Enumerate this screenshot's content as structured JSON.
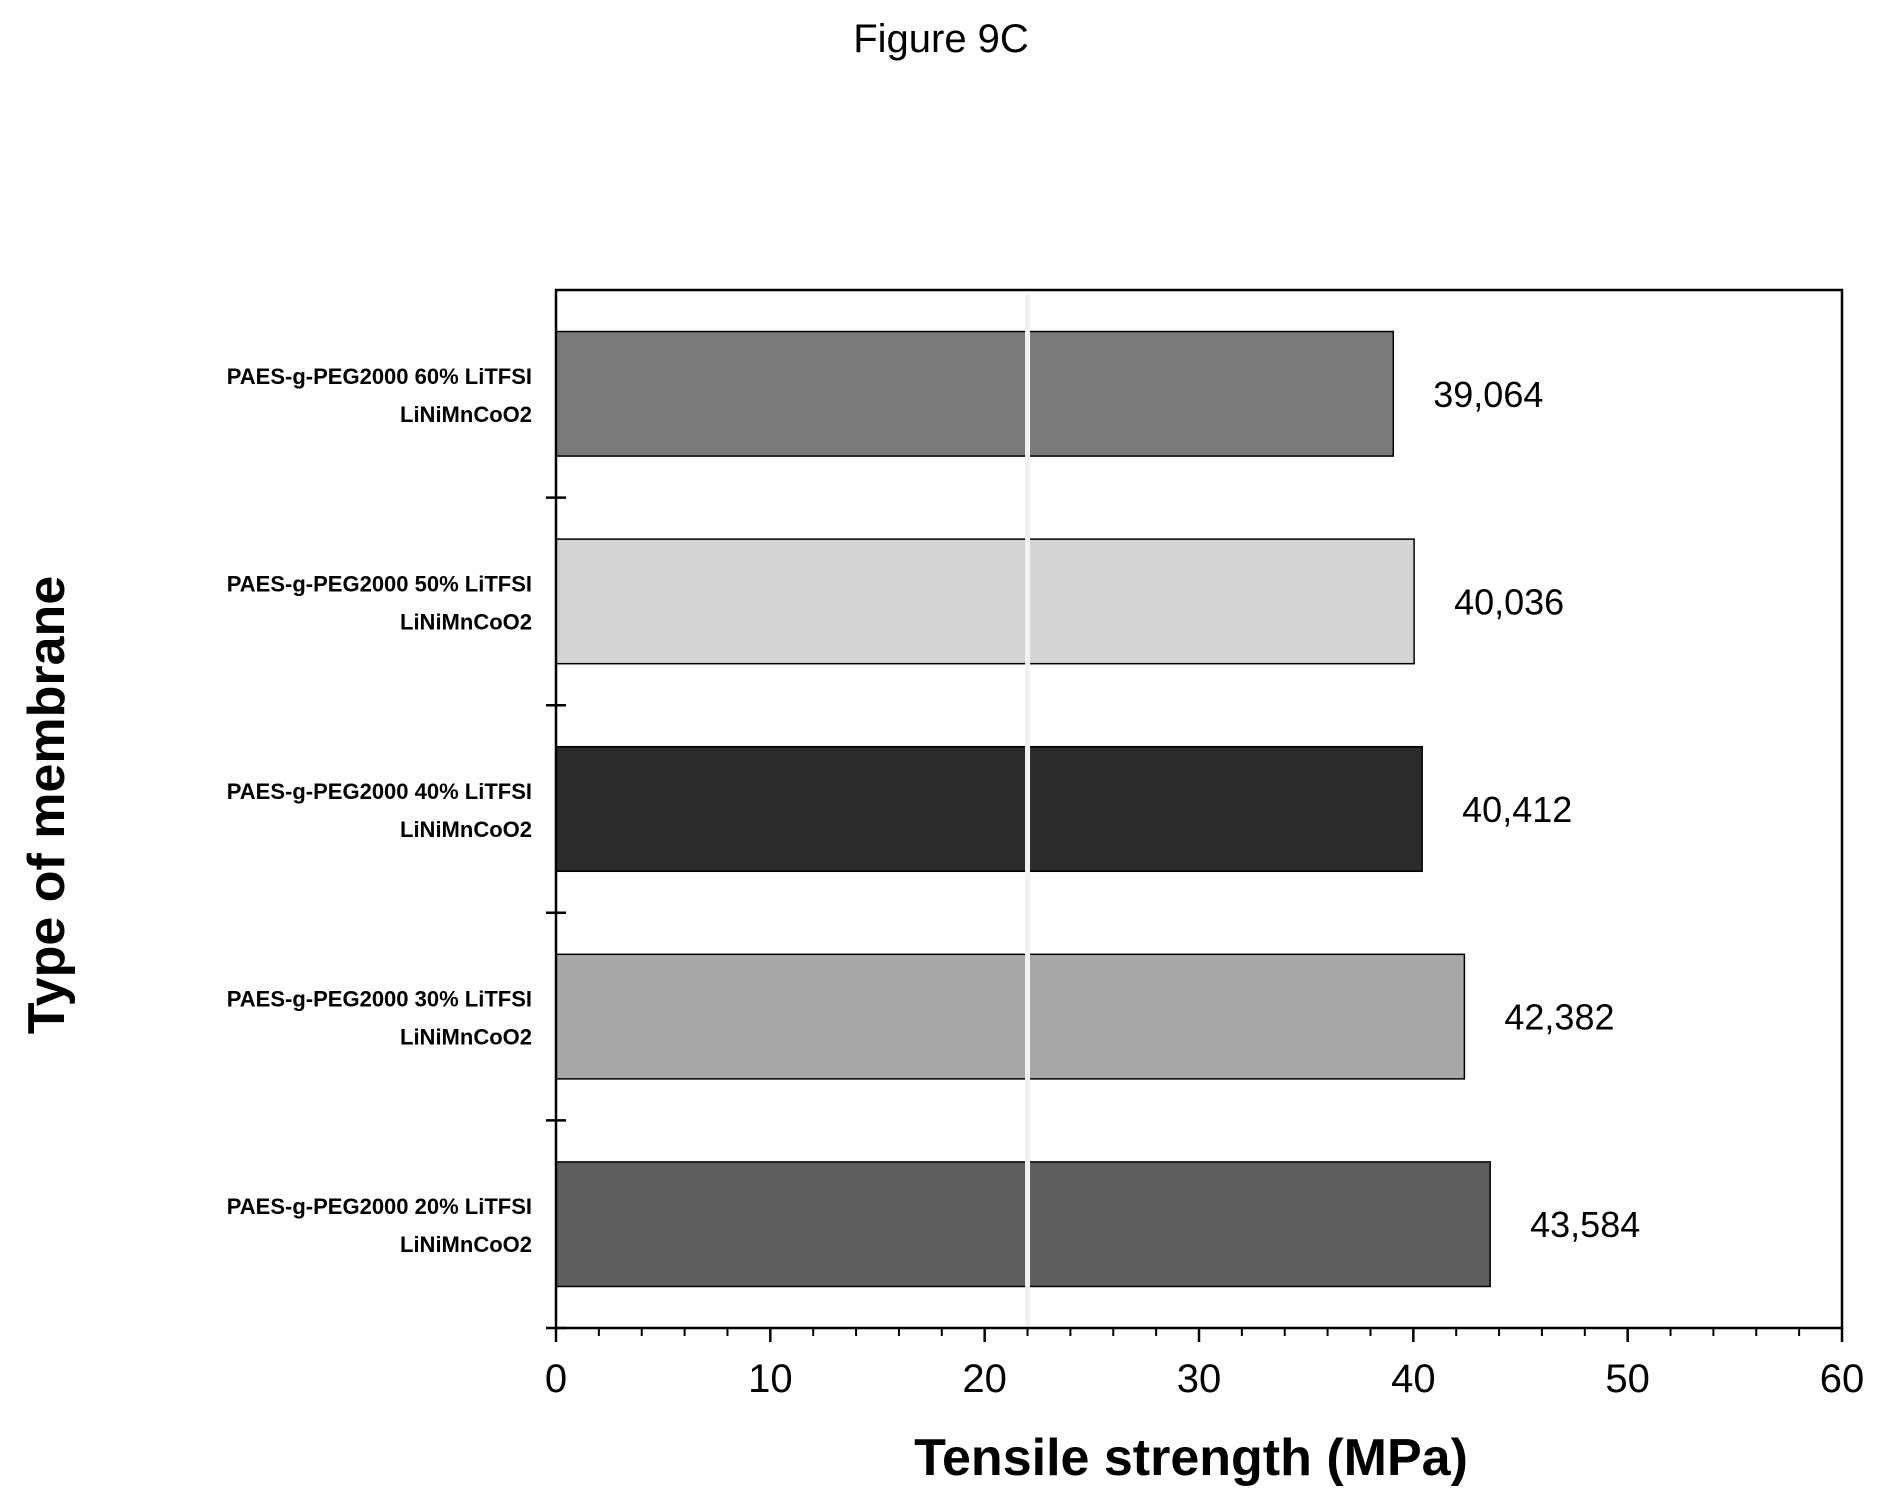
{
  "figure_title": "Figure 9C",
  "chart_data": {
    "type": "bar",
    "orientation": "horizontal",
    "xlabel": "Tensile strength (MPa)",
    "ylabel": "Type of membrane",
    "xlim": [
      0,
      60
    ],
    "xticks": [
      0,
      10,
      20,
      30,
      40,
      50,
      60
    ],
    "xtick_labels": [
      "0",
      "10",
      "20",
      "30",
      "40",
      "50",
      "60"
    ],
    "reference_line_x": 22,
    "categories": [
      [
        "PAES-g-PEG2000 60% LiTFSI",
        "LiNiMnCoO2"
      ],
      [
        "PAES-g-PEG2000 50% LiTFSI",
        "LiNiMnCoO2"
      ],
      [
        "PAES-g-PEG2000 40% LiTFSI",
        "LiNiMnCoO2"
      ],
      [
        "PAES-g-PEG2000 30% LiTFSI",
        "LiNiMnCoO2"
      ],
      [
        "PAES-g-PEG2000 20% LiTFSI",
        "LiNiMnCoO2"
      ]
    ],
    "values": [
      39.064,
      40.036,
      40.412,
      42.382,
      43.584
    ],
    "data_labels": [
      "39,064",
      "40,036",
      "40,412",
      "42,382",
      "43,584"
    ],
    "colors": [
      "#7a7a7a",
      "#d4d4d4",
      "#2b2b2b",
      "#a8a8a8",
      "#5e5e5e"
    ],
    "grid": false
  }
}
